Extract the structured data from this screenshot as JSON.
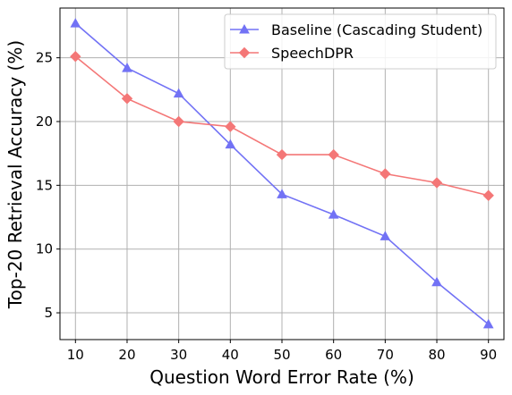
{
  "chart_data": {
    "type": "line",
    "title": "",
    "xlabel": "Question Word Error Rate (%)",
    "ylabel": "Top-20 Retrieval Accuracy (%)",
    "x": [
      10,
      20,
      30,
      40,
      50,
      60,
      70,
      80,
      90
    ],
    "xticks": [
      "10",
      "20",
      "30",
      "40",
      "50",
      "60",
      "70",
      "80",
      "90"
    ],
    "yticks": [
      "5",
      "10",
      "15",
      "20",
      "25"
    ],
    "xlim": [
      7,
      93
    ],
    "ylim": [
      2.9,
      28.9
    ],
    "grid": true,
    "legend_position": "top-right",
    "series": [
      {
        "name": "Baseline (Cascading Student)",
        "color": "#7272f5",
        "marker": "triangle",
        "values": [
          27.7,
          24.2,
          22.2,
          18.2,
          14.3,
          12.7,
          11.0,
          7.4,
          4.1
        ]
      },
      {
        "name": "SpeechDPR",
        "color": "#f47777",
        "marker": "diamond",
        "values": [
          25.1,
          21.8,
          20.0,
          19.6,
          17.4,
          17.4,
          15.9,
          15.2,
          14.2
        ]
      }
    ]
  }
}
